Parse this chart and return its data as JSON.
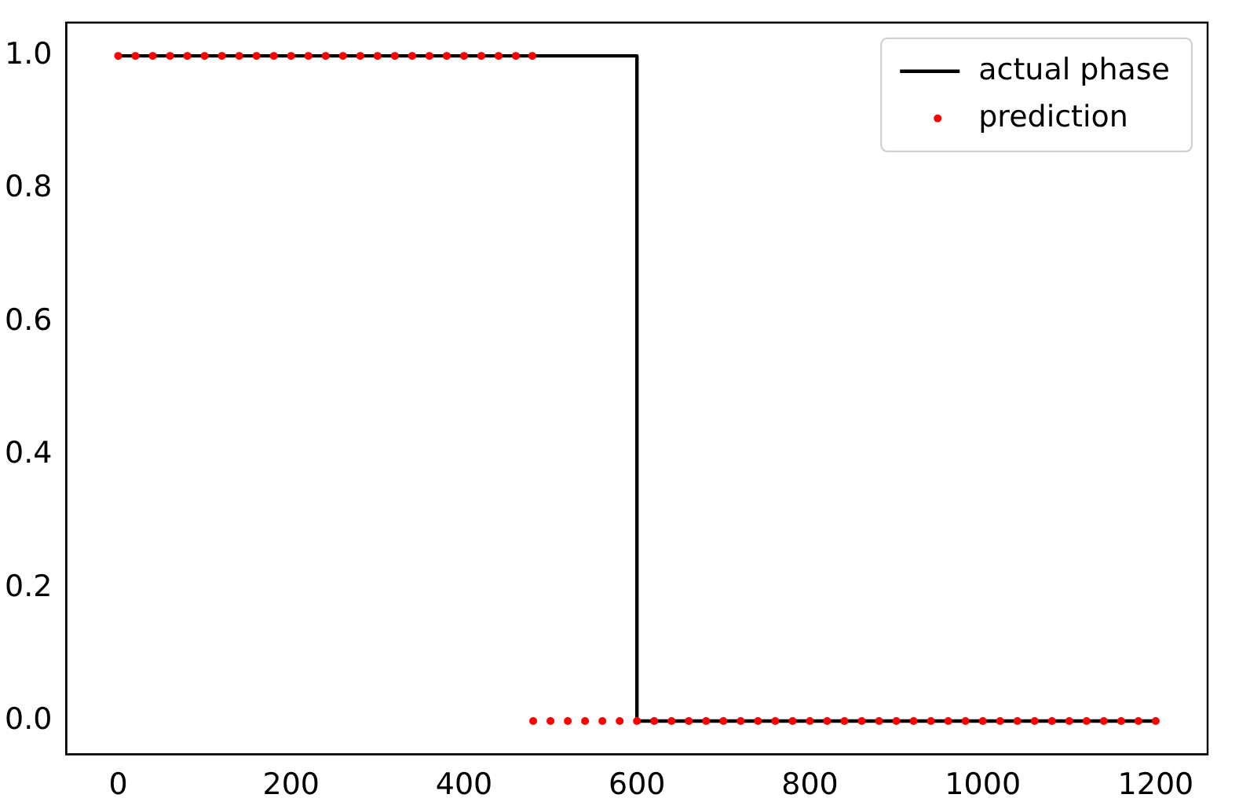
{
  "chart_data": {
    "type": "line",
    "xlim": [
      -60,
      1260
    ],
    "ylim": [
      -0.05,
      1.05
    ],
    "xticks": [
      0,
      200,
      400,
      600,
      800,
      1000,
      1200
    ],
    "yticks": [
      {
        "value": 0,
        "label": "0.0"
      },
      {
        "value": 0.2,
        "label": "0.2"
      },
      {
        "value": 0.4,
        "label": "0.4"
      },
      {
        "value": 0.6,
        "label": "0.6"
      },
      {
        "value": 0.8,
        "label": "0.8"
      },
      {
        "value": 1,
        "label": "1.0"
      }
    ],
    "grid": false,
    "legend": "top right",
    "series": [
      {
        "name": "actual phase",
        "type": "line",
        "color": "#000000",
        "line_style": "solid",
        "marker": "none",
        "x": [
          0,
          600,
          600,
          1200
        ],
        "values": [
          1,
          1,
          0,
          0
        ]
      },
      {
        "name": "prediction",
        "type": "scatter",
        "color": "#ff0000",
        "marker": "circle",
        "x": [
          0,
          20,
          40,
          60,
          80,
          100,
          120,
          140,
          160,
          180,
          200,
          220,
          240,
          260,
          280,
          300,
          320,
          340,
          360,
          380,
          400,
          420,
          440,
          460,
          479,
          480,
          500,
          520,
          540,
          560,
          580,
          600,
          620,
          640,
          660,
          680,
          700,
          720,
          740,
          760,
          780,
          800,
          820,
          840,
          860,
          880,
          900,
          920,
          940,
          960,
          980,
          1000,
          1020,
          1040,
          1060,
          1080,
          1100,
          1120,
          1140,
          1160,
          1180,
          1200
        ],
        "values": [
          1,
          1,
          1,
          1,
          1,
          1,
          1,
          1,
          1,
          1,
          1,
          1,
          1,
          1,
          1,
          1,
          1,
          1,
          1,
          1,
          1,
          1,
          1,
          1,
          1,
          0,
          0,
          0,
          0,
          0,
          0,
          0,
          0,
          0,
          0,
          0,
          0,
          0,
          0,
          0,
          0,
          0,
          0,
          0,
          0,
          0,
          0,
          0,
          0,
          0,
          0,
          0,
          0,
          0,
          0,
          0,
          0,
          0,
          0,
          0,
          0,
          0
        ]
      }
    ]
  }
}
